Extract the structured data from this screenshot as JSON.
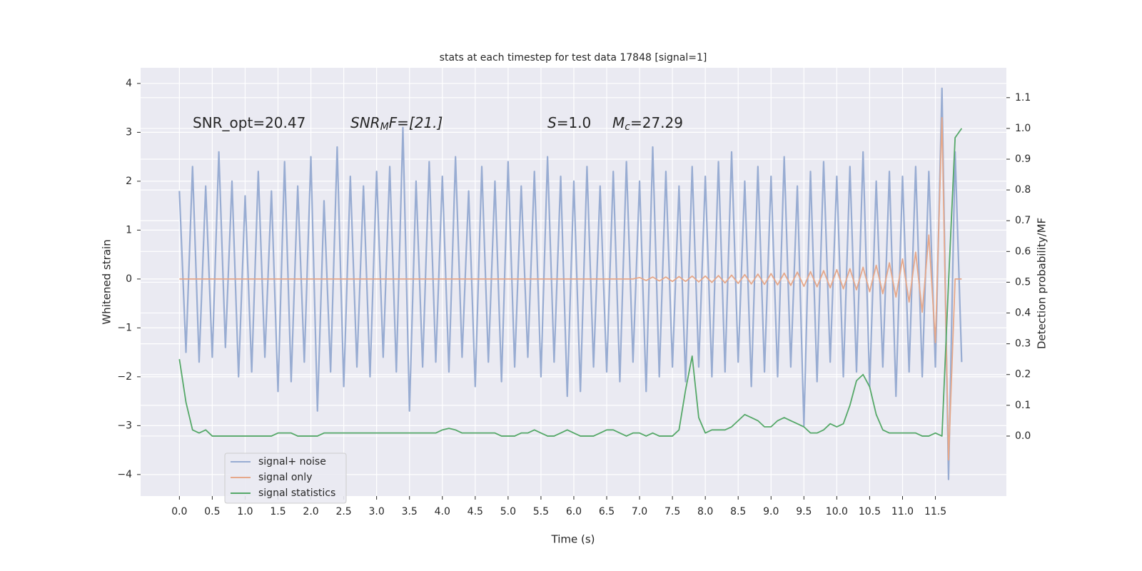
{
  "chart_data": {
    "type": "line",
    "title": "stats at each timestep for test data 17848 [signal=1]",
    "xlabel": "Time (s)",
    "ylabel": "Whitened strain",
    "y2label": "Detection probability/MF",
    "annotations": [
      {
        "text": "SNR_opt=20.47"
      },
      {
        "base": "SNR",
        "sub": "M",
        "rest": "F=[21.]"
      },
      {
        "base": "S",
        "rest": "=1.0"
      },
      {
        "base": "M",
        "sub": "c",
        "rest": "=27.29"
      }
    ],
    "x": [
      0.0,
      0.1,
      0.2,
      0.3,
      0.4,
      0.5,
      0.6,
      0.7,
      0.8,
      0.9,
      1.0,
      1.1,
      1.2,
      1.3,
      1.4,
      1.5,
      1.6,
      1.7,
      1.8,
      1.9,
      2.0,
      2.1,
      2.2,
      2.3,
      2.4,
      2.5,
      2.6,
      2.7,
      2.8,
      2.9,
      3.0,
      3.1,
      3.2,
      3.3,
      3.4,
      3.5,
      3.6,
      3.7,
      3.8,
      3.9,
      4.0,
      4.1,
      4.2,
      4.3,
      4.4,
      4.5,
      4.6,
      4.7,
      4.8,
      4.9,
      5.0,
      5.1,
      5.2,
      5.3,
      5.4,
      5.5,
      5.6,
      5.7,
      5.8,
      5.9,
      6.0,
      6.1,
      6.2,
      6.3,
      6.4,
      6.5,
      6.6,
      6.7,
      6.8,
      6.9,
      7.0,
      7.1,
      7.2,
      7.3,
      7.4,
      7.5,
      7.6,
      7.7,
      7.8,
      7.9,
      8.0,
      8.1,
      8.2,
      8.3,
      8.4,
      8.5,
      8.6,
      8.7,
      8.8,
      8.9,
      9.0,
      9.1,
      9.2,
      9.3,
      9.4,
      9.5,
      9.6,
      9.7,
      9.8,
      9.9,
      10.0,
      10.1,
      10.2,
      10.3,
      10.4,
      10.5,
      10.6,
      10.7,
      10.8,
      10.9,
      11.0,
      11.1,
      11.2,
      11.3,
      11.4,
      11.5,
      11.6,
      11.7,
      11.8,
      11.9
    ],
    "series": [
      {
        "name": "signal+ noise",
        "color": "#98acd2",
        "width": 2.2,
        "values": [
          1.8,
          -1.5,
          2.3,
          -1.7,
          1.9,
          -1.6,
          2.6,
          -1.4,
          2.0,
          -2.0,
          1.7,
          -1.9,
          2.2,
          -1.6,
          1.8,
          -2.3,
          2.4,
          -2.1,
          1.9,
          -1.7,
          2.5,
          -2.7,
          1.6,
          -1.9,
          2.7,
          -2.2,
          2.1,
          -1.8,
          1.9,
          -2.0,
          2.2,
          -1.6,
          2.3,
          -1.9,
          3.1,
          -2.7,
          2.0,
          -1.8,
          2.4,
          -1.7,
          2.1,
          -1.9,
          2.5,
          -1.6,
          1.8,
          -2.2,
          2.3,
          -1.7,
          2.0,
          -2.1,
          2.4,
          -1.8,
          1.9,
          -1.6,
          2.2,
          -2.0,
          2.5,
          -1.7,
          2.1,
          -2.4,
          2.0,
          -2.3,
          2.3,
          -1.8,
          1.9,
          -1.9,
          2.2,
          -2.1,
          2.4,
          -1.7,
          2.0,
          -2.3,
          2.7,
          -2.0,
          2.2,
          -1.8,
          1.9,
          -2.1,
          2.3,
          -1.8,
          2.1,
          -2.0,
          2.4,
          -1.9,
          2.6,
          -1.7,
          2.0,
          -2.2,
          2.3,
          -1.9,
          2.1,
          -2.0,
          2.5,
          -1.8,
          1.9,
          -3.0,
          2.2,
          -2.1,
          2.4,
          -1.7,
          2.1,
          -2.0,
          2.3,
          -1.9,
          2.6,
          -2.2,
          2.0,
          -1.8,
          2.2,
          -2.4,
          2.1,
          -1.9,
          2.3,
          -2.0,
          2.2,
          -1.8,
          3.9,
          -4.1,
          2.6,
          -1.7
        ]
      },
      {
        "name": "signal only",
        "color": "#e6a88a",
        "width": 1.8,
        "values": [
          0,
          0,
          0,
          0,
          0,
          0,
          0,
          0,
          0,
          0,
          0,
          0,
          0,
          0,
          0,
          0,
          0,
          0,
          0,
          0,
          0,
          0,
          0,
          0,
          0,
          0,
          0,
          0,
          0,
          0,
          0,
          0,
          0,
          0,
          0,
          0,
          0,
          0,
          0,
          0,
          0,
          0,
          0,
          0,
          0,
          0,
          0,
          0,
          0,
          0,
          0,
          0,
          0,
          0,
          0,
          0,
          0,
          0,
          0,
          0,
          0,
          0,
          0,
          0,
          0,
          0,
          0,
          0,
          0,
          0,
          0.03,
          -0.03,
          0.04,
          -0.04,
          0.04,
          -0.05,
          0.05,
          -0.05,
          0.06,
          -0.06,
          0.06,
          -0.07,
          0.07,
          -0.08,
          0.08,
          -0.09,
          0.09,
          -0.1,
          0.1,
          -0.11,
          0.11,
          -0.12,
          0.12,
          -0.13,
          0.14,
          -0.15,
          0.15,
          -0.16,
          0.17,
          -0.18,
          0.19,
          -0.2,
          0.21,
          -0.22,
          0.24,
          -0.26,
          0.28,
          -0.3,
          0.33,
          -0.37,
          0.41,
          -0.47,
          0.55,
          -0.68,
          0.9,
          -1.3,
          3.3,
          -3.7,
          0,
          0
        ]
      },
      {
        "name": "signal statistics",
        "color": "#55a868",
        "width": 1.8,
        "axis": "y2",
        "values": [
          0.25,
          0.11,
          0.02,
          0.01,
          0.02,
          0.0,
          0.0,
          0.0,
          0.0,
          0.0,
          0.0,
          0.0,
          0.0,
          0.0,
          0.0,
          0.01,
          0.01,
          0.01,
          0.0,
          0.0,
          0.0,
          0.0,
          0.01,
          0.01,
          0.01,
          0.01,
          0.01,
          0.01,
          0.01,
          0.01,
          0.01,
          0.01,
          0.01,
          0.01,
          0.01,
          0.01,
          0.01,
          0.01,
          0.01,
          0.01,
          0.02,
          0.025,
          0.02,
          0.01,
          0.01,
          0.01,
          0.01,
          0.01,
          0.01,
          0.0,
          0.0,
          0.0,
          0.01,
          0.01,
          0.02,
          0.01,
          0.0,
          0.0,
          0.01,
          0.02,
          0.01,
          0.0,
          0.0,
          0.0,
          0.01,
          0.02,
          0.02,
          0.01,
          0.0,
          0.01,
          0.01,
          0.0,
          0.01,
          0.0,
          0.0,
          0.0,
          0.02,
          0.15,
          0.26,
          0.06,
          0.01,
          0.02,
          0.02,
          0.02,
          0.03,
          0.05,
          0.07,
          0.06,
          0.05,
          0.03,
          0.03,
          0.05,
          0.06,
          0.05,
          0.04,
          0.03,
          0.01,
          0.01,
          0.02,
          0.04,
          0.03,
          0.04,
          0.1,
          0.18,
          0.2,
          0.16,
          0.07,
          0.02,
          0.01,
          0.01,
          0.01,
          0.01,
          0.01,
          0.0,
          0.0,
          0.01,
          0.0,
          0.5,
          0.97,
          1.0
        ]
      }
    ],
    "xlim": [
      -0.59,
      12.58
    ],
    "ylim": [
      -4.44,
      4.32
    ],
    "y2lim": [
      -0.195,
      1.197
    ],
    "xticks": [
      {
        "value": 0,
        "label": "0.0"
      },
      0.5,
      {
        "value": 1,
        "label": "1.0"
      },
      1.5,
      {
        "value": 2,
        "label": "2.0"
      },
      2.5,
      {
        "value": 3,
        "label": "3.0"
      },
      3.5,
      {
        "value": 4,
        "label": "4.0"
      },
      4.5,
      {
        "value": 5,
        "label": "5.0"
      },
      5.5,
      {
        "value": 6,
        "label": "6.0"
      },
      6.5,
      {
        "value": 7,
        "label": "7.0"
      },
      7.5,
      {
        "value": 8,
        "label": "8.0"
      },
      8.5,
      {
        "value": 9,
        "label": "9.0"
      },
      9.5,
      {
        "value": 10,
        "label": "10.0"
      },
      10.5,
      {
        "value": 11,
        "label": "11.0"
      },
      11.5
    ],
    "yticks": [
      {
        "value": -4,
        "label": "−4"
      },
      {
        "value": -3,
        "label": "−3"
      },
      {
        "value": -2,
        "label": "−2"
      },
      {
        "value": -1,
        "label": "−1"
      },
      0,
      1,
      2,
      3,
      4
    ],
    "y2ticks": [
      {
        "value": 0,
        "label": "0.0"
      },
      0.1,
      0.2,
      0.3,
      0.4,
      0.5,
      0.6,
      0.7,
      0.8,
      0.9,
      {
        "value": 1,
        "label": "1.0"
      },
      1.1
    ],
    "grid": true,
    "legend": "lower left",
    "background": "#eaeaf2"
  }
}
